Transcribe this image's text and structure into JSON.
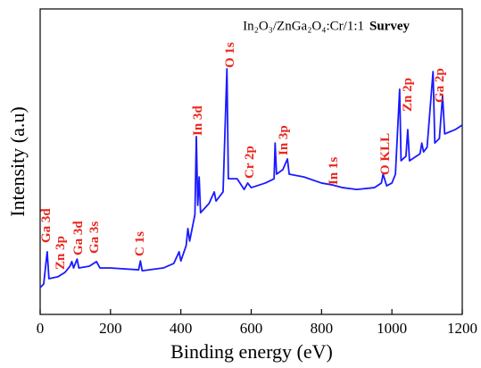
{
  "chart_data": {
    "type": "line",
    "x_label": "Binding energy (eV)",
    "y_label": "Intensity (a.u)",
    "legend_text": "In₂O₃/ZnGa₂O₄:Cr/1:1",
    "legend_tag": "Survey",
    "xlim": [
      0,
      1200
    ],
    "xticks": [
      0,
      200,
      400,
      600,
      800,
      1000,
      1200
    ],
    "ylim": [
      0,
      100
    ],
    "series": [
      {
        "color": "#1a1aff",
        "x": [
          0,
          10,
          20,
          25,
          50,
          70,
          85,
          90,
          95,
          105,
          110,
          140,
          160,
          170,
          200,
          280,
          285,
          290,
          350,
          380,
          395,
          400,
          415,
          420,
          425,
          440,
          444,
          448,
          452,
          456,
          480,
          495,
          500,
          520,
          531,
          535,
          560,
          580,
          590,
          600,
          640,
          665,
          668,
          672,
          690,
          703,
          708,
          750,
          800,
          830,
          860,
          900,
          950,
          970,
          975,
          985,
          1000,
          1010,
          1022,
          1026,
          1040,
          1045,
          1050,
          1080,
          1085,
          1090,
          1100,
          1117,
          1122,
          1135,
          1144,
          1150,
          1180,
          1200
        ],
        "values": [
          8.8,
          9.9,
          20.5,
          11.7,
          12.3,
          13.7,
          15.8,
          17.3,
          15.2,
          18.1,
          15.2,
          15.8,
          17.3,
          15.2,
          15.2,
          14.6,
          17.5,
          14.3,
          15.2,
          16.7,
          20.5,
          17.5,
          22.5,
          28.1,
          24.0,
          32.7,
          58.2,
          35.7,
          45.0,
          33.3,
          36.3,
          40.1,
          37.1,
          40.1,
          80.4,
          44.4,
          44.4,
          40.9,
          43.0,
          41.5,
          43.0,
          44.4,
          56.1,
          45.9,
          47.4,
          50.9,
          45.9,
          45.0,
          43.0,
          42.4,
          41.5,
          40.9,
          41.5,
          43.0,
          45.9,
          42.1,
          43.0,
          45.9,
          73.7,
          50.3,
          51.8,
          60.5,
          50.3,
          52.6,
          56.1,
          53.2,
          54.7,
          79.5,
          56.1,
          57.6,
          71.6,
          59.1,
          60.5,
          62.0
        ]
      }
    ],
    "annotations": [
      "Ga 3d",
      "Zn 3p",
      "Ga 3d",
      "Ga 3s",
      "C 1s",
      "In 3d",
      "O 1s",
      "Cr 2p",
      "In 3p",
      "In 1s",
      "O KLL",
      "Zn 2p",
      "Ga 2p"
    ]
  }
}
